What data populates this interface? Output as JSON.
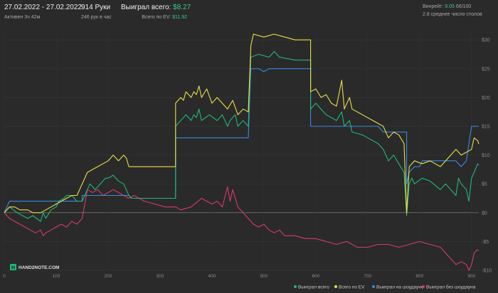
{
  "header": {
    "date_range": "27.02.2022 - 27.02.2022",
    "active": "Активен 3ч 42м",
    "hands": "914 Руки",
    "hands_rate": "246 рук в час",
    "won_label": "Выиграл всего:",
    "won_value": "$8.27",
    "ev_label": "Всего по EV:",
    "ev_value": "$11.92",
    "winrate_label": "Винрейт:",
    "winrate_value": "9.05",
    "winrate_suffix": "66/100",
    "tables": "2.8 среднее число столов"
  },
  "logo": {
    "text": "HAND2NOTE.COM"
  },
  "colors": {
    "background": "#2a2a2a",
    "won": "#20b878",
    "ev": "#e8e04a",
    "showdown": "#3a8ae0",
    "non_showdown": "#d63a6e"
  },
  "chart_data": {
    "type": "line",
    "title": "",
    "xlabel": "",
    "ylabel": "",
    "xlim": [
      0,
      914
    ],
    "ylim": [
      -10,
      32
    ],
    "x_ticks": [
      0,
      100,
      200,
      300,
      400,
      500,
      600,
      700,
      800,
      900
    ],
    "y_ticks": [
      -10,
      -5,
      0,
      5,
      10,
      15,
      20,
      25,
      30
    ],
    "y_tick_labels": [
      "-$10",
      "-$5",
      "$0",
      "$5",
      "$10",
      "$15",
      "$20",
      "$25",
      "$30"
    ],
    "legend_position": "bottom-right",
    "series": [
      {
        "name": "Выиграл всего",
        "color": "#20b878",
        "points": [
          [
            0,
            0
          ],
          [
            10,
            1
          ],
          [
            25,
            0
          ],
          [
            45,
            -1
          ],
          [
            55,
            -0.5
          ],
          [
            70,
            -1.5
          ],
          [
            75,
            0
          ],
          [
            80,
            -1
          ],
          [
            90,
            0.5
          ],
          [
            100,
            1
          ],
          [
            105,
            2
          ],
          [
            115,
            2.5
          ],
          [
            120,
            3
          ],
          [
            130,
            3
          ],
          [
            140,
            2
          ],
          [
            150,
            2
          ],
          [
            155,
            3
          ],
          [
            165,
            5
          ],
          [
            175,
            4
          ],
          [
            185,
            5
          ],
          [
            195,
            6
          ],
          [
            200,
            6
          ],
          [
            210,
            6.5
          ],
          [
            220,
            5.5
          ],
          [
            230,
            5
          ],
          [
            235,
            4
          ],
          [
            240,
            3
          ],
          [
            245,
            2.5
          ],
          [
            330,
            2.5
          ],
          [
            330,
            15
          ],
          [
            340,
            16
          ],
          [
            350,
            17
          ],
          [
            360,
            16
          ],
          [
            365,
            17
          ],
          [
            370,
            16.5
          ],
          [
            375,
            18
          ],
          [
            380,
            16
          ],
          [
            395,
            17
          ],
          [
            410,
            16
          ],
          [
            420,
            17
          ],
          [
            430,
            15
          ],
          [
            435,
            16
          ],
          [
            445,
            17
          ],
          [
            450,
            15
          ],
          [
            460,
            16
          ],
          [
            470,
            15
          ],
          [
            475,
            27
          ],
          [
            490,
            27.5
          ],
          [
            510,
            27
          ],
          [
            520,
            28
          ],
          [
            530,
            27
          ],
          [
            560,
            26.5
          ],
          [
            590,
            26.5
          ],
          [
            590,
            18
          ],
          [
            600,
            19
          ],
          [
            610,
            18
          ],
          [
            620,
            17
          ],
          [
            640,
            16
          ],
          [
            650,
            17.5
          ],
          [
            655,
            15
          ],
          [
            665,
            16
          ],
          [
            670,
            14
          ],
          [
            690,
            13.5
          ],
          [
            700,
            13
          ],
          [
            720,
            12
          ],
          [
            730,
            11
          ],
          [
            740,
            9
          ],
          [
            750,
            10
          ],
          [
            760,
            8.5
          ],
          [
            770,
            7
          ],
          [
            775,
            -0.5
          ],
          [
            780,
            5
          ],
          [
            785,
            6
          ],
          [
            790,
            5
          ],
          [
            805,
            6
          ],
          [
            820,
            5.5
          ],
          [
            840,
            4
          ],
          [
            850,
            5
          ],
          [
            860,
            4
          ],
          [
            870,
            3
          ],
          [
            875,
            6
          ],
          [
            880,
            5
          ],
          [
            890,
            4
          ],
          [
            895,
            2
          ],
          [
            900,
            6
          ],
          [
            905,
            7
          ],
          [
            912,
            8.5
          ],
          [
            914,
            8.27
          ]
        ]
      },
      {
        "name": "Всего по EV",
        "color": "#e8e04a",
        "points": [
          [
            0,
            0
          ],
          [
            10,
            1
          ],
          [
            20,
            1
          ],
          [
            30,
            0.5
          ],
          [
            45,
            0.5
          ],
          [
            55,
            0
          ],
          [
            70,
            0
          ],
          [
            80,
            0.5
          ],
          [
            90,
            1
          ],
          [
            100,
            1.5
          ],
          [
            110,
            2
          ],
          [
            120,
            2.5
          ],
          [
            130,
            3
          ],
          [
            140,
            3
          ],
          [
            150,
            5
          ],
          [
            160,
            7
          ],
          [
            170,
            7.5
          ],
          [
            180,
            8
          ],
          [
            190,
            8.5
          ],
          [
            200,
            9
          ],
          [
            210,
            10
          ],
          [
            220,
            9
          ],
          [
            230,
            10
          ],
          [
            235,
            9.5
          ],
          [
            240,
            8
          ],
          [
            245,
            8
          ],
          [
            330,
            8
          ],
          [
            330,
            19
          ],
          [
            340,
            20
          ],
          [
            345,
            19.5
          ],
          [
            350,
            21
          ],
          [
            360,
            20
          ],
          [
            365,
            21
          ],
          [
            370,
            20.5
          ],
          [
            375,
            22
          ],
          [
            380,
            20
          ],
          [
            390,
            21.5
          ],
          [
            400,
            19
          ],
          [
            410,
            20
          ],
          [
            420,
            19
          ],
          [
            430,
            18
          ],
          [
            440,
            19.5
          ],
          [
            450,
            17
          ],
          [
            460,
            18
          ],
          [
            470,
            17.5
          ],
          [
            475,
            29
          ],
          [
            480,
            31
          ],
          [
            500,
            30.5
          ],
          [
            520,
            31
          ],
          [
            540,
            30.5
          ],
          [
            560,
            30
          ],
          [
            590,
            30
          ],
          [
            590,
            21
          ],
          [
            600,
            21.5
          ],
          [
            610,
            20
          ],
          [
            620,
            20.5
          ],
          [
            630,
            19
          ],
          [
            640,
            18.5
          ],
          [
            650,
            23
          ],
          [
            655,
            18
          ],
          [
            665,
            20
          ],
          [
            670,
            18
          ],
          [
            690,
            17
          ],
          [
            710,
            16
          ],
          [
            730,
            15
          ],
          [
            740,
            13
          ],
          [
            750,
            14
          ],
          [
            760,
            13.5
          ],
          [
            770,
            12
          ],
          [
            775,
            0
          ],
          [
            780,
            8
          ],
          [
            790,
            9
          ],
          [
            805,
            8.5
          ],
          [
            820,
            9
          ],
          [
            840,
            8
          ],
          [
            850,
            9
          ],
          [
            860,
            10
          ],
          [
            870,
            11
          ],
          [
            880,
            10
          ],
          [
            890,
            10.5
          ],
          [
            900,
            11
          ],
          [
            905,
            13
          ],
          [
            912,
            12.5
          ],
          [
            914,
            11.92
          ]
        ]
      },
      {
        "name": "Выиграл на шоудауне",
        "color": "#3a8ae0",
        "points": [
          [
            0,
            0
          ],
          [
            10,
            2
          ],
          [
            150,
            2
          ],
          [
            150,
            3
          ],
          [
            240,
            3
          ],
          [
            245,
            2.5
          ],
          [
            330,
            2.5
          ],
          [
            330,
            13
          ],
          [
            470,
            13
          ],
          [
            475,
            25
          ],
          [
            490,
            25
          ],
          [
            500,
            24.5
          ],
          [
            510,
            25
          ],
          [
            590,
            25
          ],
          [
            590,
            15
          ],
          [
            720,
            15
          ],
          [
            730,
            14
          ],
          [
            775,
            14
          ],
          [
            775,
            5
          ],
          [
            780,
            7
          ],
          [
            790,
            8
          ],
          [
            800,
            8
          ],
          [
            805,
            9
          ],
          [
            870,
            9
          ],
          [
            880,
            8
          ],
          [
            890,
            9
          ],
          [
            900,
            15
          ],
          [
            914,
            15
          ]
        ]
      },
      {
        "name": "Выиграл без шоудауна",
        "color": "#d63a6e",
        "points": [
          [
            0,
            0
          ],
          [
            10,
            -1
          ],
          [
            20,
            -1.5
          ],
          [
            30,
            -2
          ],
          [
            40,
            -2.5
          ],
          [
            50,
            -3
          ],
          [
            60,
            -3.5
          ],
          [
            70,
            -3
          ],
          [
            75,
            -4
          ],
          [
            80,
            -3.5
          ],
          [
            90,
            -3
          ],
          [
            100,
            -2.5
          ],
          [
            110,
            -2
          ],
          [
            120,
            -2.5
          ],
          [
            130,
            -1.5
          ],
          [
            140,
            -2
          ],
          [
            150,
            -1
          ],
          [
            160,
            4
          ],
          [
            170,
            3.5
          ],
          [
            180,
            4
          ],
          [
            190,
            3
          ],
          [
            200,
            3.5
          ],
          [
            210,
            4
          ],
          [
            220,
            3.5
          ],
          [
            230,
            3
          ],
          [
            240,
            2.5
          ],
          [
            250,
            3
          ],
          [
            270,
            2
          ],
          [
            290,
            1.5
          ],
          [
            310,
            1
          ],
          [
            320,
            1
          ],
          [
            330,
            1
          ],
          [
            340,
            0.5
          ],
          [
            360,
            1
          ],
          [
            380,
            2.5
          ],
          [
            390,
            2
          ],
          [
            400,
            1.5
          ],
          [
            410,
            2
          ],
          [
            420,
            1
          ],
          [
            430,
            4.5
          ],
          [
            435,
            2
          ],
          [
            440,
            4
          ],
          [
            450,
            1
          ],
          [
            460,
            0
          ],
          [
            470,
            -1
          ],
          [
            480,
            -2
          ],
          [
            490,
            -2.5
          ],
          [
            500,
            -2
          ],
          [
            510,
            -3
          ],
          [
            520,
            -3.5
          ],
          [
            530,
            -3
          ],
          [
            540,
            -4
          ],
          [
            560,
            -4
          ],
          [
            580,
            -4.5
          ],
          [
            600,
            -4.5
          ],
          [
            620,
            -5
          ],
          [
            640,
            -5.5
          ],
          [
            660,
            -5
          ],
          [
            680,
            -6
          ],
          [
            700,
            -6
          ],
          [
            720,
            -5.5
          ],
          [
            740,
            -5.5
          ],
          [
            760,
            -6
          ],
          [
            780,
            -5.5
          ],
          [
            800,
            -5
          ],
          [
            820,
            -5.5
          ],
          [
            840,
            -6
          ],
          [
            850,
            -7
          ],
          [
            860,
            -8
          ],
          [
            870,
            -9
          ],
          [
            880,
            -8.5
          ],
          [
            890,
            -9
          ],
          [
            895,
            -10
          ],
          [
            900,
            -9
          ],
          [
            905,
            -7
          ],
          [
            910,
            -6.5
          ],
          [
            914,
            -6.5
          ]
        ]
      }
    ]
  }
}
